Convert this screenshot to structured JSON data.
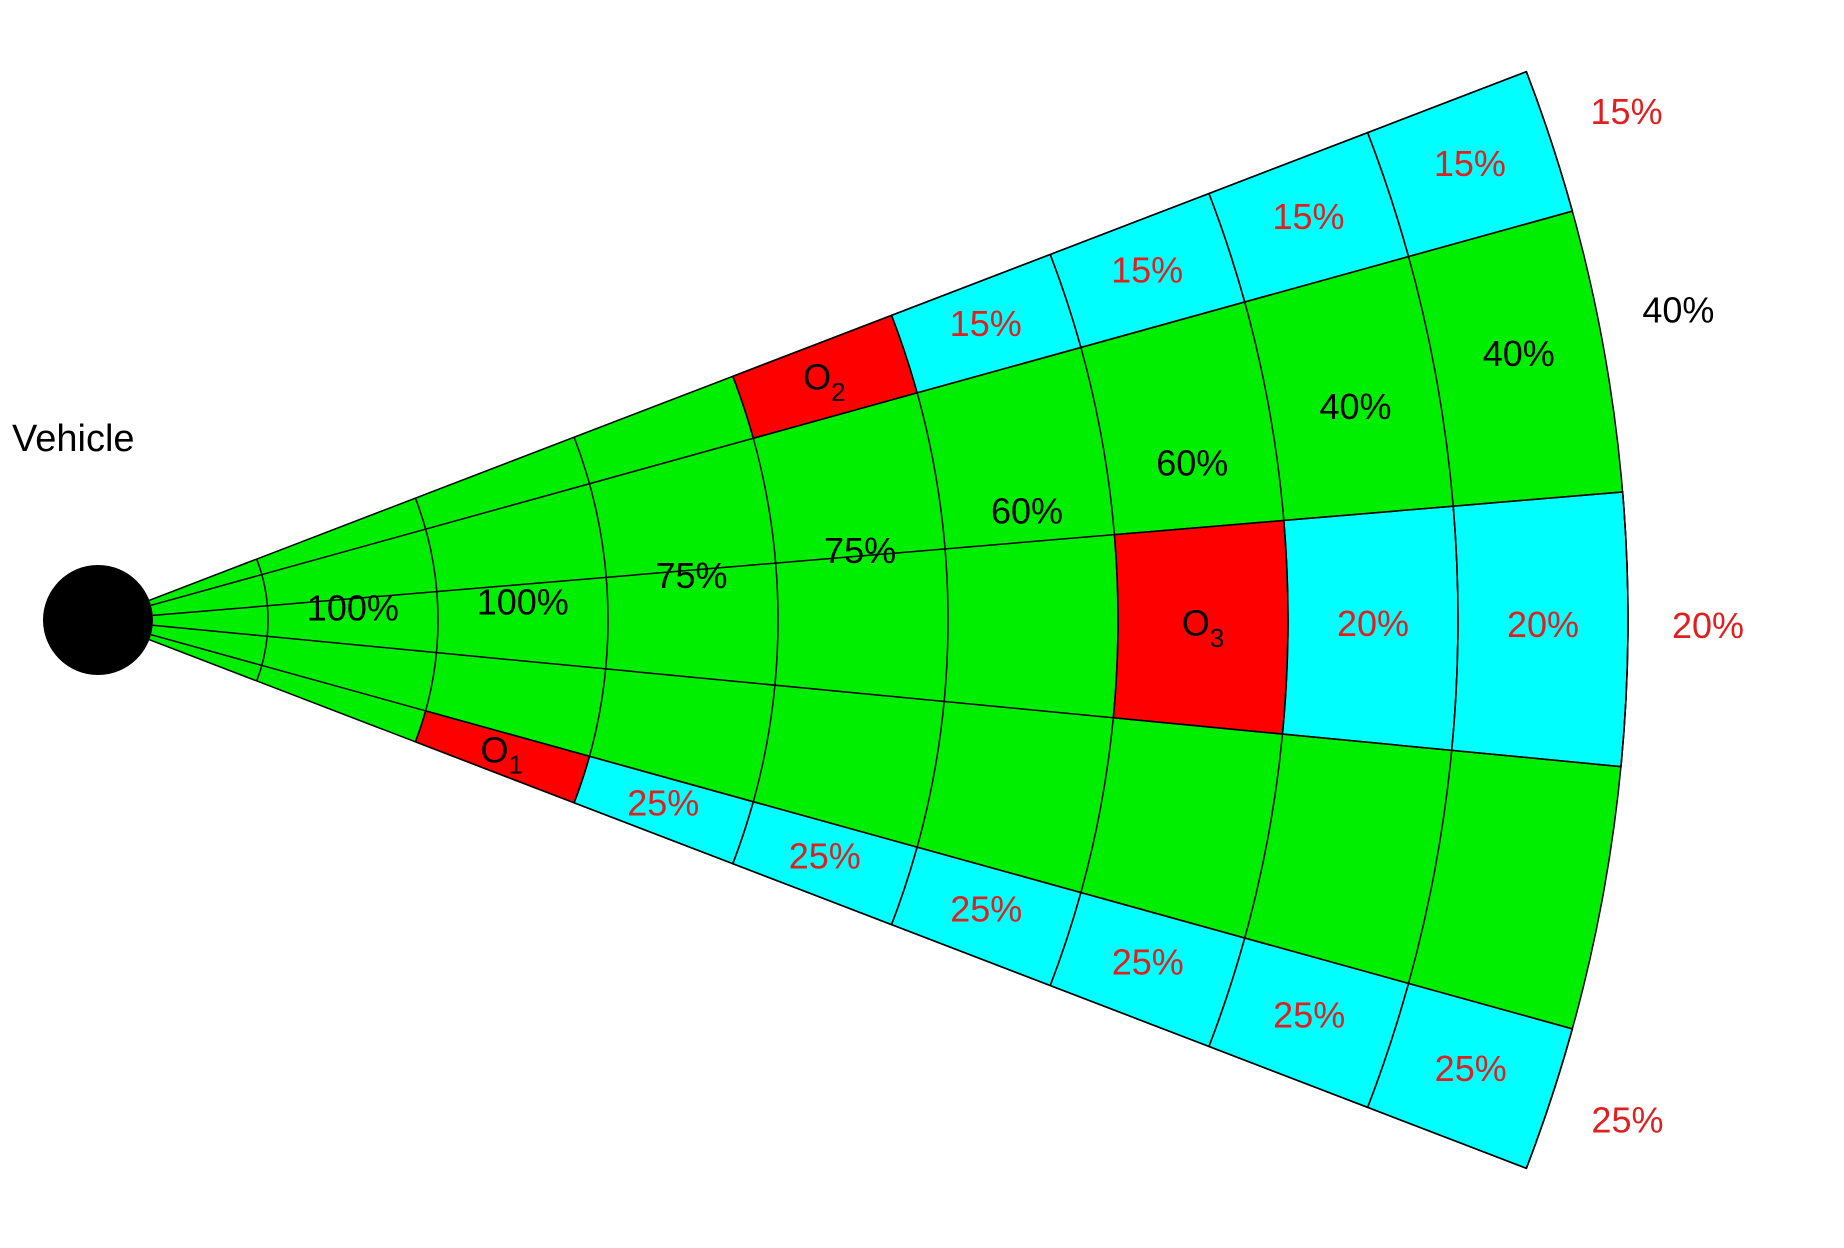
{
  "vehicle": {
    "label": "Vehicle"
  },
  "colors": {
    "free": "#00ee00",
    "unreachable": "#00ffff",
    "obstacle": "#ff0000",
    "vehicle": "#000000",
    "free_text": "#000000",
    "unreachable_text": "#e02020",
    "obstacle_text": "#000000"
  },
  "grid": {
    "rings": 9,
    "sectors": 7,
    "sector_ids_top_to_bottom": [
      "s-top",
      "s2",
      "s3",
      "s4",
      "s5",
      "s6",
      "s-bottom"
    ]
  },
  "cells": [
    {
      "ring": 0,
      "sector": 2,
      "state": "free",
      "label": ""
    },
    {
      "ring": 1,
      "sector": 3,
      "state": "free",
      "label": "100%"
    },
    {
      "ring": 2,
      "sector": 3,
      "state": "free",
      "label": "100%"
    },
    {
      "ring": 3,
      "sector": 3,
      "state": "free",
      "label": "75%"
    },
    {
      "ring": 4,
      "sector": 3,
      "state": "free",
      "label": "75%"
    },
    {
      "ring": 5,
      "sector": 2,
      "state": "free",
      "label": "60%"
    },
    {
      "ring": 6,
      "sector": 2,
      "state": "free",
      "label": "60%"
    },
    {
      "ring": 7,
      "sector": 1,
      "state": "free",
      "label": "40%"
    },
    {
      "ring": 8,
      "sector": 1,
      "state": "free",
      "label": "40%"
    },
    {
      "ring": 9,
      "sector": 1,
      "state": "free",
      "label": "40%"
    },
    {
      "ring": 4,
      "sector": 0,
      "state": "obstacle",
      "label": "O",
      "sub": "2"
    },
    {
      "ring": 5,
      "sector": 0,
      "state": "unreachable",
      "label": "15%"
    },
    {
      "ring": 6,
      "sector": 0,
      "state": "unreachable",
      "label": "15%"
    },
    {
      "ring": 7,
      "sector": 0,
      "state": "unreachable",
      "label": "15%"
    },
    {
      "ring": 8,
      "sector": 0,
      "state": "unreachable",
      "label": "15%"
    },
    {
      "ring": 9,
      "sector": 0,
      "state": "unreachable",
      "label": "15%"
    },
    {
      "ring": 2,
      "sector": 6,
      "state": "obstacle",
      "label": "O",
      "sub": "1"
    },
    {
      "ring": 3,
      "sector": 6,
      "state": "unreachable",
      "label": "25%"
    },
    {
      "ring": 4,
      "sector": 6,
      "state": "unreachable",
      "label": "25%"
    },
    {
      "ring": 5,
      "sector": 6,
      "state": "unreachable",
      "label": "25%"
    },
    {
      "ring": 6,
      "sector": 6,
      "state": "unreachable",
      "label": "25%"
    },
    {
      "ring": 7,
      "sector": 6,
      "state": "unreachable",
      "label": "25%"
    },
    {
      "ring": 8,
      "sector": 6,
      "state": "unreachable",
      "label": "25%"
    },
    {
      "ring": 9,
      "sector": 6,
      "state": "unreachable",
      "label": "25%"
    },
    {
      "ring": 6,
      "sector": 3,
      "state": "obstacle",
      "label": "O",
      "sub": "3"
    },
    {
      "ring": 7,
      "sector": 3,
      "state": "unreachable",
      "label": "20%"
    },
    {
      "ring": 8,
      "sector": 3,
      "state": "unreachable",
      "label": "20%"
    },
    {
      "ring": 9,
      "sector": 3,
      "state": "unreachable",
      "label": "20%"
    }
  ]
}
